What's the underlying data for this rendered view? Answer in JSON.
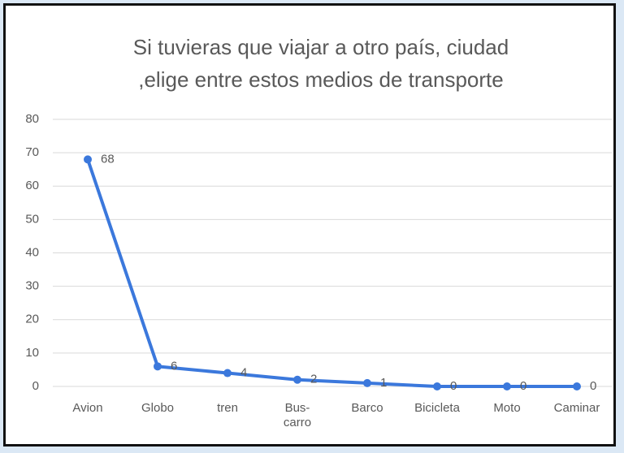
{
  "chart_data": {
    "type": "line",
    "title": [
      "Si tuvieras que viajar a otro país, ciudad",
      ",elige entre estos medios de transporte"
    ],
    "categories": [
      "Avion",
      "Globo",
      "tren",
      "Bus-carro",
      "Barco",
      "Bicicleta",
      "Moto",
      "Caminar"
    ],
    "values": [
      68,
      6,
      4,
      2,
      1,
      0,
      0,
      0
    ],
    "color": "#3b78dc",
    "ylim": [
      0,
      80
    ],
    "yticks": [
      0,
      10,
      20,
      30,
      40,
      50,
      60,
      70,
      80
    ],
    "grid": true
  }
}
